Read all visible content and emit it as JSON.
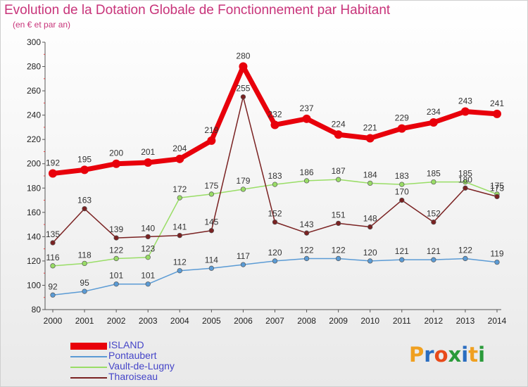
{
  "title": "Evolution de la Dotation Globale de Fonctionnement par Habitant",
  "subtitle": "(en € et par an)",
  "logo": {
    "text": "Proxiti"
  },
  "chart_data": {
    "type": "line",
    "title": "Evolution de la Dotation Globale de Fonctionnement par Habitant",
    "subtitle": "(en € et par an)",
    "xlabel": "",
    "ylabel": "",
    "x": [
      "2000",
      "2001",
      "2002",
      "2003",
      "2004",
      "2005",
      "2006",
      "2007",
      "2008",
      "2009",
      "2010",
      "2011",
      "2012",
      "2013",
      "2014"
    ],
    "ylim": [
      80,
      300
    ],
    "yticks": [
      80,
      100,
      120,
      140,
      160,
      180,
      200,
      220,
      240,
      260,
      280,
      300
    ],
    "grid": false,
    "legend": "bottom-left",
    "series": [
      {
        "name": "ISLAND",
        "color": "#e8000b",
        "values": [
          192,
          195,
          200,
          201,
          204,
          219,
          280,
          232,
          237,
          224,
          221,
          229,
          234,
          243,
          241
        ]
      },
      {
        "name": "Pontaubert",
        "color": "#5b9bd5",
        "values": [
          92,
          95,
          101,
          101,
          112,
          114,
          117,
          120,
          122,
          122,
          120,
          121,
          121,
          122,
          119
        ]
      },
      {
        "name": "Vault-de-Lugny",
        "color": "#99dd66",
        "values": [
          116,
          118,
          122,
          123,
          172,
          175,
          179,
          183,
          186,
          187,
          184,
          183,
          185,
          185,
          175
        ]
      },
      {
        "name": "Tharoiseau",
        "color": "#7a2222",
        "values": [
          135,
          163,
          139,
          140,
          141,
          145,
          255,
          152,
          143,
          151,
          148,
          170,
          152,
          180,
          173
        ]
      }
    ]
  }
}
